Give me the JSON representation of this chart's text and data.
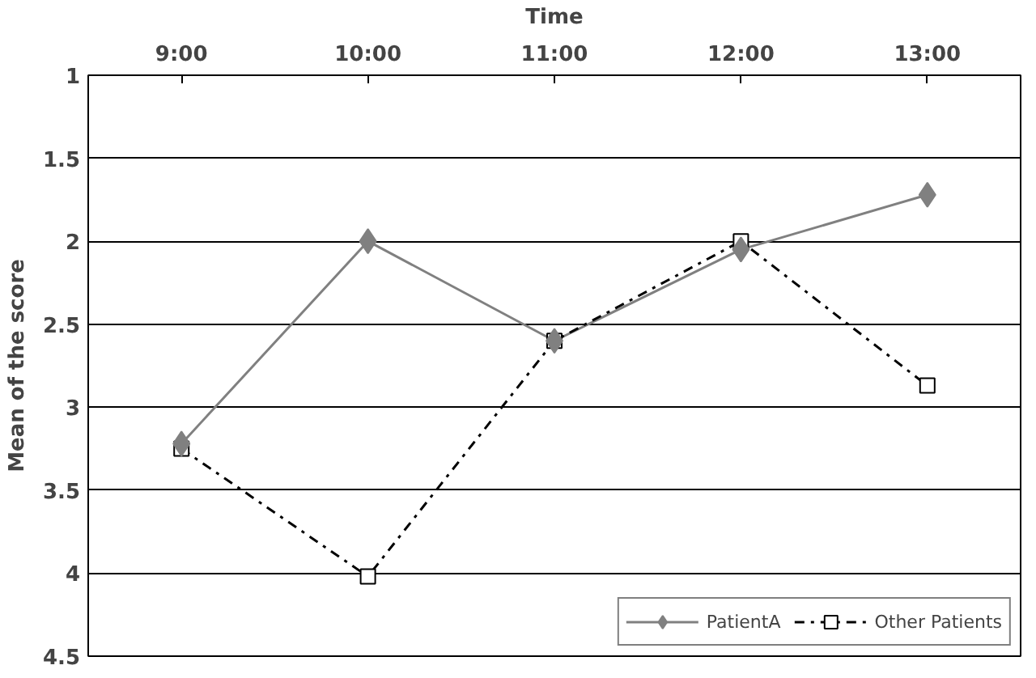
{
  "chart_data": {
    "type": "line",
    "xlabel": "Time",
    "ylabel": "Mean of the score",
    "categories": [
      "9:00",
      "10:00",
      "11:00",
      "12:00",
      "13:00"
    ],
    "ylim": [
      4.5,
      1
    ],
    "yticks": [
      1,
      1.5,
      2,
      2.5,
      3,
      3.5,
      4,
      4.5
    ],
    "grid": "y",
    "legend": "bottom right",
    "series": [
      {
        "name": "PatientA",
        "color": "#808080",
        "marker": "diamond",
        "line_style": "solid",
        "values": [
          3.22,
          2.0,
          2.6,
          2.05,
          1.72
        ]
      },
      {
        "name": "Other Patients",
        "color": "#000000",
        "marker": "square",
        "line_style": "dashdot",
        "values": [
          3.25,
          4.02,
          2.6,
          2.0,
          2.87
        ]
      }
    ]
  }
}
